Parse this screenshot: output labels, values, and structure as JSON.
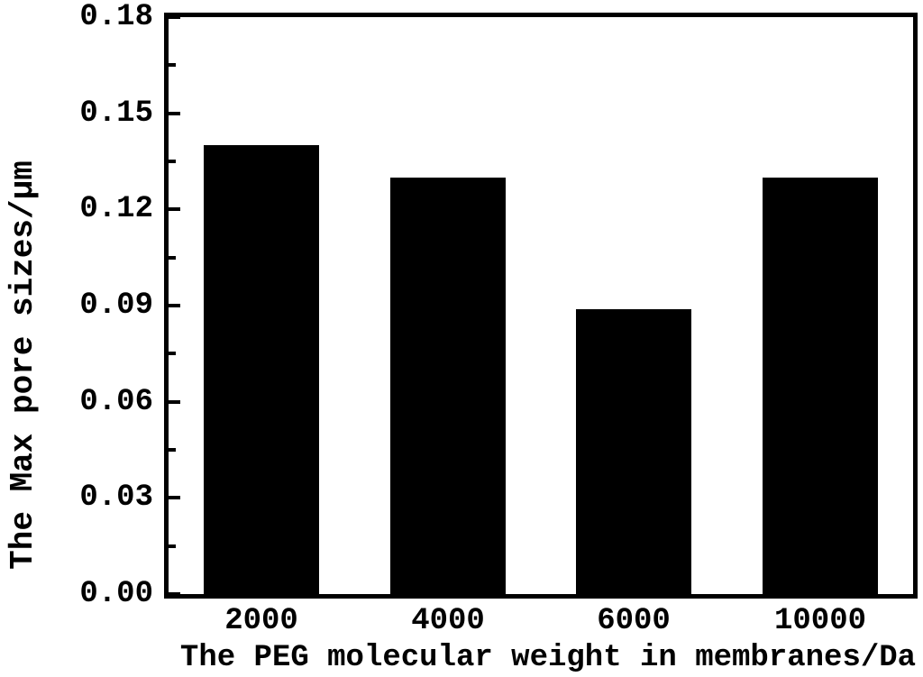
{
  "figure": {
    "background_color": "#ffffff",
    "foreground_color": "#000000"
  },
  "chart_data": {
    "type": "bar",
    "title": "",
    "categories": [
      "2000",
      "4000",
      "6000",
      "10000"
    ],
    "values": [
      0.14,
      0.13,
      0.089,
      0.13
    ],
    "xlabel": "The PEG molecular weight in membranes/Da",
    "ylabel": "The Max pore sizes/μm",
    "ylim": [
      0.0,
      0.18
    ],
    "ytick_labels": [
      "0.00",
      "0.03",
      "0.06",
      "0.09",
      "0.12",
      "0.15",
      "0.18"
    ],
    "ytick_major_step": 0.03,
    "ytick_minor_step": 0.015,
    "bar_color": "#000000",
    "axis_color": "#000000",
    "grid": false,
    "legend": "none",
    "tick_direction": "in"
  }
}
